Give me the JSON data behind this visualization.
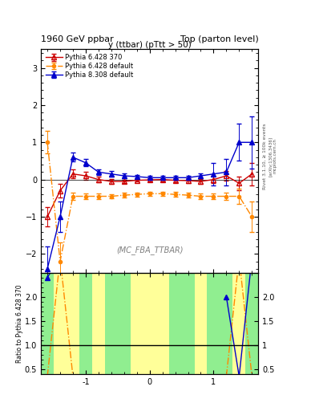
{
  "title_left": "1960 GeV ppbar",
  "title_right": "Top (parton level)",
  "plot_title": "y (ttbar) (pTtt > 50)",
  "watermark": "(MC_FBA_TTBAR)",
  "right_label": "Rivet 3.1.10, ≥ 100k events",
  "arxiv_label": "[arXiv:1306.3436]",
  "mcplots_label": "mcplots.cern.ch",
  "ylabel_ratio": "Ratio to Pythia 6.428 370",
  "xlim": [
    -1.7,
    1.7
  ],
  "ylim_main": [
    -2.5,
    3.5
  ],
  "ylim_ratio": [
    0.4,
    2.5
  ],
  "yticks_main": [
    -2,
    -1,
    0,
    1,
    2,
    3
  ],
  "yticks_ratio": [
    0.5,
    1.0,
    1.5,
    2.0
  ],
  "xticks": [
    -1.0,
    0.0,
    1.0
  ],
  "series": [
    {
      "label": "Pythia 6.428 370",
      "color": "#cc0000",
      "linestyle": "-",
      "marker": "^",
      "markerfacecolor": "none",
      "markersize": 4,
      "linewidth": 1.0,
      "x": [
        -1.6,
        -1.4,
        -1.2,
        -1.0,
        -0.8,
        -0.6,
        -0.4,
        -0.2,
        0.0,
        0.2,
        0.4,
        0.6,
        0.8,
        1.0,
        1.2,
        1.4,
        1.6
      ],
      "y": [
        -1.0,
        -0.3,
        0.15,
        0.1,
        0.0,
        -0.05,
        -0.05,
        -0.02,
        -0.01,
        0.0,
        -0.02,
        -0.03,
        -0.05,
        0.0,
        0.1,
        -0.1,
        0.15
      ],
      "yerr": [
        0.25,
        0.18,
        0.12,
        0.1,
        0.07,
        0.06,
        0.05,
        0.04,
        0.04,
        0.04,
        0.05,
        0.06,
        0.07,
        0.1,
        0.12,
        0.18,
        0.3
      ]
    },
    {
      "label": "Pythia 6.428 default",
      "color": "#ff8800",
      "linestyle": "-.",
      "marker": "o",
      "markerfacecolor": "#ff8800",
      "markersize": 3,
      "linewidth": 1.0,
      "x": [
        -1.6,
        -1.4,
        -1.2,
        -1.0,
        -0.8,
        -0.6,
        -0.4,
        -0.2,
        0.0,
        0.2,
        0.4,
        0.6,
        0.8,
        1.0,
        1.2,
        1.4,
        1.6
      ],
      "y": [
        1.0,
        -2.2,
        -0.45,
        -0.45,
        -0.45,
        -0.45,
        -0.42,
        -0.4,
        -0.38,
        -0.38,
        -0.4,
        -0.42,
        -0.45,
        -0.45,
        -0.45,
        -0.45,
        -1.0
      ],
      "yerr": [
        0.3,
        0.5,
        0.1,
        0.08,
        0.07,
        0.06,
        0.06,
        0.05,
        0.05,
        0.05,
        0.06,
        0.06,
        0.07,
        0.08,
        0.1,
        0.2,
        0.4
      ]
    },
    {
      "label": "Pythia 8.308 default",
      "color": "#0000cc",
      "linestyle": "-",
      "marker": "^",
      "markerfacecolor": "#0000cc",
      "markersize": 4,
      "linewidth": 1.0,
      "x": [
        -1.6,
        -1.4,
        -1.2,
        -1.0,
        -0.8,
        -0.6,
        -0.4,
        -0.2,
        0.0,
        0.2,
        0.4,
        0.6,
        0.8,
        1.0,
        1.2,
        1.4,
        1.6
      ],
      "y": [
        -2.4,
        -1.0,
        0.6,
        0.45,
        0.2,
        0.15,
        0.1,
        0.08,
        0.05,
        0.05,
        0.05,
        0.05,
        0.1,
        0.15,
        0.2,
        1.0,
        1.0
      ],
      "yerr": [
        0.6,
        0.4,
        0.12,
        0.1,
        0.08,
        0.07,
        0.06,
        0.05,
        0.05,
        0.05,
        0.05,
        0.06,
        0.07,
        0.3,
        0.35,
        0.5,
        0.7
      ]
    }
  ],
  "band_edges": [
    -1.7,
    -1.5,
    -1.3,
    -1.1,
    -0.9,
    -0.7,
    -0.5,
    -0.3,
    -0.1,
    0.1,
    0.3,
    0.5,
    0.7,
    0.9,
    1.1,
    1.3,
    1.5,
    1.7
  ],
  "band_colors": [
    "#90ee90",
    "#ffff99",
    "#ffff99",
    "#90ee90",
    "#ffff99",
    "#90ee90",
    "#90ee90",
    "#ffff99",
    "#ffff99",
    "#ffff99",
    "#90ee90",
    "#90ee90",
    "#ffff99",
    "#90ee90",
    "#90ee90",
    "#ffff99",
    "#90ee90"
  ]
}
